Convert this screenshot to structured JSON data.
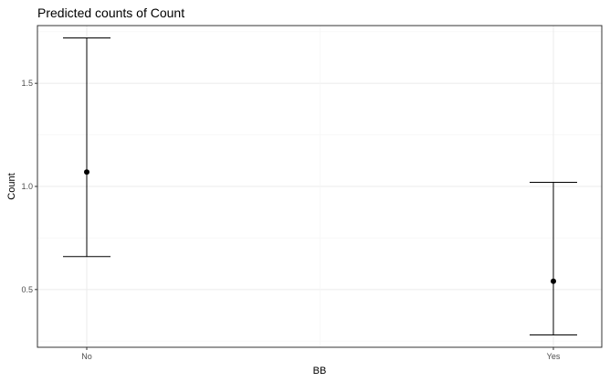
{
  "chart_data": {
    "type": "scatter",
    "title": "Predicted counts of Count",
    "xlabel": "BB",
    "ylabel": "Count",
    "categories": [
      "No",
      "Yes"
    ],
    "points": [
      {
        "category": "No",
        "estimate": 1.07,
        "lower": 0.66,
        "upper": 1.72
      },
      {
        "category": "Yes",
        "estimate": 0.54,
        "lower": 0.28,
        "upper": 1.02
      }
    ],
    "ylim": [
      0.22,
      1.78
    ],
    "y_ticks": [
      0.5,
      1.0,
      1.5
    ],
    "y_tick_labels": [
      "0.5",
      "1.0",
      "1.5"
    ],
    "grid": true,
    "colors": {
      "panel_border": "#333333",
      "grid_major": "#ebebeb",
      "grid_minor": "#f5f5f5",
      "marks": "#000000"
    }
  }
}
